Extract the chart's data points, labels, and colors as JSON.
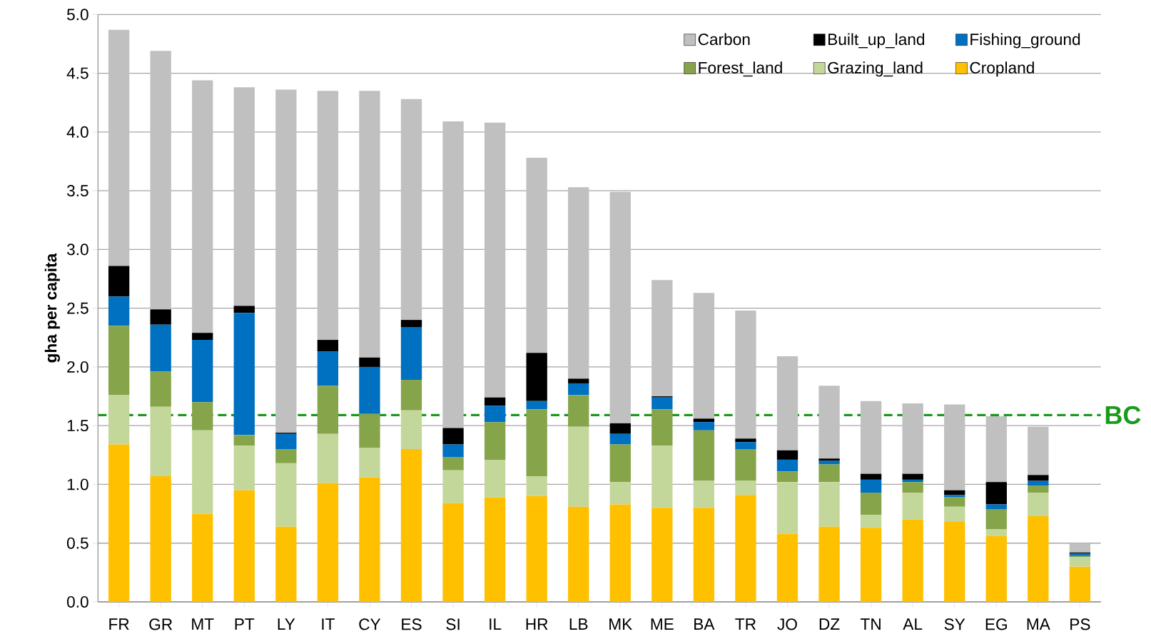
{
  "chart_data": {
    "type": "bar",
    "stacked": true,
    "ylabel": "gha per capita",
    "categories": [
      "FR",
      "GR",
      "MT",
      "PT",
      "LY",
      "IT",
      "CY",
      "ES",
      "SI",
      "IL",
      "HR",
      "LB",
      "MK",
      "ME",
      "BA",
      "TR",
      "JO",
      "DZ",
      "TN",
      "AL",
      "SY",
      "EG",
      "MA",
      "PS"
    ],
    "series": [
      {
        "name": "Cropland",
        "color": "#ffc000",
        "values": [
          1.34,
          1.07,
          0.75,
          0.95,
          0.64,
          1.01,
          1.06,
          1.3,
          0.84,
          0.89,
          0.9,
          0.81,
          0.83,
          0.8,
          0.8,
          0.91,
          0.58,
          0.64,
          0.63,
          0.7,
          0.68,
          0.56,
          0.73,
          0.3
        ]
      },
      {
        "name": "Grazing_land",
        "color": "#c4d79b",
        "values": [
          0.42,
          0.59,
          0.71,
          0.38,
          0.54,
          0.42,
          0.25,
          0.33,
          0.28,
          0.32,
          0.17,
          0.68,
          0.19,
          0.53,
          0.23,
          0.12,
          0.44,
          0.38,
          0.11,
          0.23,
          0.13,
          0.06,
          0.2,
          0.08
        ]
      },
      {
        "name": "Forest_land",
        "color": "#86a44a",
        "values": [
          0.59,
          0.3,
          0.24,
          0.09,
          0.12,
          0.41,
          0.29,
          0.26,
          0.11,
          0.32,
          0.57,
          0.27,
          0.32,
          0.31,
          0.43,
          0.27,
          0.09,
          0.15,
          0.19,
          0.09,
          0.08,
          0.17,
          0.06,
          0.01
        ]
      },
      {
        "name": "Fishing_ground",
        "color": "#0070c0",
        "values": [
          0.25,
          0.4,
          0.53,
          1.04,
          0.13,
          0.29,
          0.4,
          0.45,
          0.11,
          0.14,
          0.07,
          0.1,
          0.09,
          0.1,
          0.07,
          0.06,
          0.1,
          0.03,
          0.11,
          0.02,
          0.02,
          0.04,
          0.04,
          0.02
        ]
      },
      {
        "name": "Built_up_land",
        "color": "#000000",
        "values": [
          0.26,
          0.13,
          0.06,
          0.06,
          0.01,
          0.1,
          0.08,
          0.06,
          0.14,
          0.07,
          0.41,
          0.04,
          0.09,
          0.01,
          0.03,
          0.03,
          0.08,
          0.02,
          0.05,
          0.05,
          0.04,
          0.19,
          0.05,
          0.01
        ]
      },
      {
        "name": "Carbon",
        "color": "#c0c0c0",
        "values": [
          2.01,
          2.2,
          2.15,
          1.86,
          2.92,
          2.12,
          2.27,
          1.88,
          2.61,
          2.34,
          1.66,
          1.63,
          1.97,
          0.99,
          1.07,
          1.09,
          0.8,
          0.62,
          0.62,
          0.6,
          0.73,
          0.56,
          0.41,
          0.08
        ]
      }
    ],
    "ylim": [
      0,
      5
    ],
    "yticks": [
      {
        "value": 0,
        "label": "0.0"
      },
      {
        "value": 0.5,
        "label": "0.5"
      },
      {
        "value": 1,
        "label": "1.0"
      },
      {
        "value": 1.5,
        "label": "1.5"
      },
      {
        "value": 2,
        "label": "2.0"
      },
      {
        "value": 2.5,
        "label": "2.5"
      },
      {
        "value": 3,
        "label": "3.0"
      },
      {
        "value": 3.5,
        "label": "3.5"
      },
      {
        "value": 4,
        "label": "4.0"
      },
      {
        "value": 4.5,
        "label": "4.5"
      },
      {
        "value": 5,
        "label": "5.0"
      }
    ],
    "grid": "y",
    "legend": "top right",
    "ref_lines": [
      {
        "axis": "y",
        "value": 1.59,
        "label": "BC",
        "color": "#1a9a1a",
        "line_style": "dashed"
      }
    ]
  }
}
